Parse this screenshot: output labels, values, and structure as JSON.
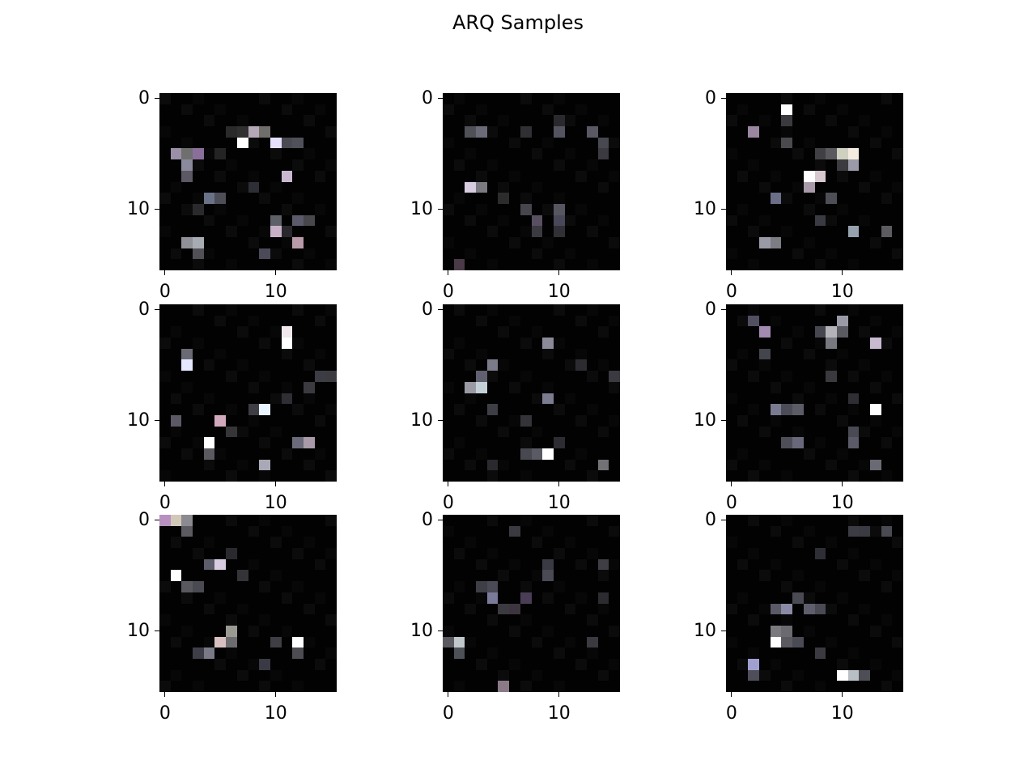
{
  "chart_data": {
    "type": "heatmap",
    "title": "ARQ Samples",
    "grid": false,
    "layout": "3x3",
    "image_size": 16,
    "x_ticks": [
      0,
      10
    ],
    "y_ticks": [
      0,
      10
    ],
    "x_tick_labels": [
      "0",
      "10"
    ],
    "y_tick_labels": [
      "0",
      "10"
    ],
    "panels": [
      {
        "pixels": [
          [
            5,
            3,
            "#8a6f9a"
          ],
          [
            5,
            2,
            "#6f6f6f"
          ],
          [
            5,
            1,
            "#9a8fa6"
          ],
          [
            4,
            7,
            "#ffffff"
          ],
          [
            4,
            10,
            "#e6e0ff"
          ],
          [
            3,
            8,
            "#b4a8b8"
          ],
          [
            3,
            9,
            "#6f6e6a"
          ],
          [
            4,
            11,
            "#4a4a52"
          ],
          [
            4,
            12,
            "#50505a"
          ],
          [
            6,
            2,
            "#8a8a9c"
          ],
          [
            7,
            2,
            "#5c5864"
          ],
          [
            7,
            11,
            "#c8b8d0"
          ],
          [
            9,
            4,
            "#6a7288"
          ],
          [
            9,
            5,
            "#4e4e58"
          ],
          [
            11,
            10,
            "#5e6068"
          ],
          [
            11,
            12,
            "#5a5a6a"
          ],
          [
            11,
            13,
            "#48484c"
          ],
          [
            12,
            10,
            "#c8b0c8"
          ],
          [
            13,
            2,
            "#909098"
          ],
          [
            13,
            3,
            "#a6acb2"
          ],
          [
            13,
            12,
            "#b89aa8"
          ],
          [
            14,
            3,
            "#505056"
          ],
          [
            14,
            9,
            "#4a4a58"
          ],
          [
            3,
            7,
            "#303030"
          ],
          [
            3,
            6,
            "#2a2a2a"
          ],
          [
            8,
            8,
            "#2e2e36"
          ],
          [
            10,
            3,
            "#2a2a2c"
          ],
          [
            12,
            11,
            "#28282c"
          ],
          [
            5,
            5,
            "#242424"
          ]
        ]
      },
      {
        "pixels": [
          [
            3,
            3,
            "#6a6a78"
          ],
          [
            3,
            2,
            "#505058"
          ],
          [
            3,
            10,
            "#545460"
          ],
          [
            3,
            13,
            "#5a5862"
          ],
          [
            4,
            14,
            "#484850"
          ],
          [
            8,
            2,
            "#d8cce0"
          ],
          [
            8,
            3,
            "#7a7a80"
          ],
          [
            10,
            7,
            "#46464c"
          ],
          [
            11,
            8,
            "#585060"
          ],
          [
            10,
            10,
            "#565660"
          ],
          [
            11,
            10,
            "#48485a"
          ],
          [
            12,
            8,
            "#3a3a40"
          ],
          [
            15,
            1,
            "#4a3a48"
          ],
          [
            3,
            7,
            "#303034"
          ],
          [
            2,
            10,
            "#2a2a2e"
          ],
          [
            9,
            5,
            "#2c2c2c"
          ],
          [
            12,
            10,
            "#303036"
          ],
          [
            5,
            14,
            "#3a3a40"
          ]
        ]
      },
      {
        "pixels": [
          [
            1,
            5,
            "#ffffff"
          ],
          [
            3,
            2,
            "#9a86a0"
          ],
          [
            5,
            10,
            "#d0d0c0"
          ],
          [
            5,
            11,
            "#f4ece0"
          ],
          [
            5,
            9,
            "#5a5a5e"
          ],
          [
            6,
            11,
            "#9a9aa8"
          ],
          [
            7,
            7,
            "#ffffff"
          ],
          [
            7,
            8,
            "#d8c8d0"
          ],
          [
            8,
            7,
            "#a89aa8"
          ],
          [
            9,
            4,
            "#6a6e88"
          ],
          [
            9,
            9,
            "#4e4e56"
          ],
          [
            12,
            11,
            "#96a2ae"
          ],
          [
            13,
            3,
            "#9a9aa6"
          ],
          [
            13,
            4,
            "#7c7c84"
          ],
          [
            4,
            5,
            "#4a4a4e"
          ],
          [
            2,
            5,
            "#3a3a3e"
          ],
          [
            5,
            8,
            "#404044"
          ],
          [
            11,
            8,
            "#3a3a42"
          ],
          [
            12,
            14,
            "#5c5c60"
          ],
          [
            6,
            10,
            "#3c3c40"
          ]
        ]
      },
      {
        "pixels": [
          [
            2,
            11,
            "#f0e8ec"
          ],
          [
            3,
            11,
            "#ffffff"
          ],
          [
            5,
            2,
            "#e6e8ff"
          ],
          [
            4,
            2,
            "#6a6a74"
          ],
          [
            9,
            9,
            "#e8f4ff"
          ],
          [
            10,
            5,
            "#d2a8bc"
          ],
          [
            12,
            4,
            "#ffffff"
          ],
          [
            13,
            4,
            "#5a5a60"
          ],
          [
            12,
            13,
            "#a89aa8"
          ],
          [
            12,
            12,
            "#6a6a7a"
          ],
          [
            14,
            9,
            "#a8a8b6"
          ],
          [
            10,
            1,
            "#5c5864"
          ],
          [
            6,
            14,
            "#3c3c44"
          ],
          [
            6,
            15,
            "#3c3c40"
          ],
          [
            7,
            13,
            "#3a3a40"
          ],
          [
            9,
            8,
            "#3e3e44"
          ],
          [
            11,
            6,
            "#363638"
          ],
          [
            8,
            11,
            "#302e34"
          ]
        ]
      },
      {
        "pixels": [
          [
            5,
            4,
            "#7a7a88"
          ],
          [
            6,
            3,
            "#606070"
          ],
          [
            7,
            2,
            "#9a9aa4"
          ],
          [
            7,
            3,
            "#c4d0d8"
          ],
          [
            3,
            9,
            "#8a8a98"
          ],
          [
            8,
            9,
            "#7c7c90"
          ],
          [
            13,
            9,
            "#ffffff"
          ],
          [
            13,
            8,
            "#5a5a64"
          ],
          [
            13,
            7,
            "#484850"
          ],
          [
            14,
            14,
            "#727276"
          ],
          [
            9,
            4,
            "#3e3e46"
          ],
          [
            10,
            7,
            "#343438"
          ],
          [
            6,
            15,
            "#3a3a40"
          ],
          [
            5,
            12,
            "#2c2c30"
          ],
          [
            12,
            10,
            "#2c2c32"
          ],
          [
            14,
            4,
            "#2a2a2e"
          ]
        ]
      },
      {
        "pixels": [
          [
            2,
            3,
            "#a28ab0"
          ],
          [
            2,
            9,
            "#b4b4b8"
          ],
          [
            3,
            9,
            "#787880"
          ],
          [
            1,
            10,
            "#9a9aa6"
          ],
          [
            2,
            10,
            "#5a5a62"
          ],
          [
            3,
            13,
            "#c8b8d0"
          ],
          [
            9,
            13,
            "#ffffff"
          ],
          [
            9,
            4,
            "#7a7a90"
          ],
          [
            9,
            6,
            "#5c5c66"
          ],
          [
            9,
            5,
            "#4c4c58"
          ],
          [
            12,
            11,
            "#5a5a68"
          ],
          [
            11,
            11,
            "#4a4a54"
          ],
          [
            12,
            6,
            "#68687a"
          ],
          [
            12,
            5,
            "#4e4e58"
          ],
          [
            14,
            13,
            "#6a6a74"
          ],
          [
            2,
            8,
            "#464650"
          ],
          [
            1,
            2,
            "#505060"
          ],
          [
            4,
            3,
            "#44444c"
          ],
          [
            6,
            9,
            "#3a3a3e"
          ],
          [
            8,
            11,
            "#2e2e34"
          ]
        ]
      },
      {
        "pixels": [
          [
            0,
            0,
            "#b890c0"
          ],
          [
            0,
            1,
            "#d2c8b8"
          ],
          [
            0,
            2,
            "#8a8a90"
          ],
          [
            1,
            2,
            "#5a5a60"
          ],
          [
            4,
            5,
            "#d8cce0"
          ],
          [
            4,
            4,
            "#5c5c6a"
          ],
          [
            5,
            1,
            "#ffffff"
          ],
          [
            6,
            2,
            "#58585e"
          ],
          [
            6,
            3,
            "#4a4a52"
          ],
          [
            10,
            6,
            "#9a9a92"
          ],
          [
            11,
            6,
            "#6c6c70"
          ],
          [
            11,
            5,
            "#d8c0c0"
          ],
          [
            12,
            4,
            "#7a7a86"
          ],
          [
            11,
            12,
            "#ffffff"
          ],
          [
            12,
            12,
            "#4c4c52"
          ],
          [
            11,
            10,
            "#3e3e44"
          ],
          [
            13,
            9,
            "#3a3a44"
          ],
          [
            5,
            7,
            "#343438"
          ],
          [
            3,
            6,
            "#2a2a2e"
          ],
          [
            12,
            3,
            "#3e3e48"
          ]
        ]
      },
      {
        "pixels": [
          [
            7,
            4,
            "#7a7a9a"
          ],
          [
            6,
            4,
            "#4a4a56"
          ],
          [
            6,
            3,
            "#3e3e46"
          ],
          [
            7,
            7,
            "#4a3e56"
          ],
          [
            8,
            6,
            "#3c343e"
          ],
          [
            8,
            5,
            "#3a3a40"
          ],
          [
            11,
            1,
            "#c0c8cc"
          ],
          [
            11,
            0,
            "#5a5a60"
          ],
          [
            12,
            1,
            "#4e5058"
          ],
          [
            15,
            5,
            "#8a7a88"
          ],
          [
            16,
            5,
            "#3a3a40"
          ],
          [
            5,
            9,
            "#4a4a54"
          ],
          [
            4,
            9,
            "#3a3a44"
          ],
          [
            1,
            6,
            "#3a3a40"
          ],
          [
            4,
            14,
            "#3e3e44"
          ],
          [
            11,
            13,
            "#3a3a40"
          ],
          [
            7,
            14,
            "#2c2c30"
          ]
        ]
      },
      {
        "pixels": [
          [
            11,
            4,
            "#ffffff"
          ],
          [
            10,
            4,
            "#7a7a7e"
          ],
          [
            10,
            5,
            "#6a6a70"
          ],
          [
            11,
            5,
            "#5a5a60"
          ],
          [
            11,
            6,
            "#4a4a54"
          ],
          [
            8,
            5,
            "#8a8aa6"
          ],
          [
            8,
            4,
            "#5a5a66"
          ],
          [
            7,
            6,
            "#4a4a52"
          ],
          [
            8,
            7,
            "#5e5e6c"
          ],
          [
            8,
            8,
            "#4a4a54"
          ],
          [
            13,
            2,
            "#a0a0d0"
          ],
          [
            14,
            2,
            "#4e4e5a"
          ],
          [
            14,
            10,
            "#ffffff"
          ],
          [
            14,
            11,
            "#b8c0c6"
          ],
          [
            14,
            12,
            "#4e4e56"
          ],
          [
            1,
            11,
            "#3c3c44"
          ],
          [
            1,
            12,
            "#3a3a42"
          ],
          [
            1,
            14,
            "#4a4a52"
          ],
          [
            3,
            8,
            "#2e2e36"
          ],
          [
            12,
            8,
            "#3a3a40"
          ]
        ]
      }
    ]
  }
}
